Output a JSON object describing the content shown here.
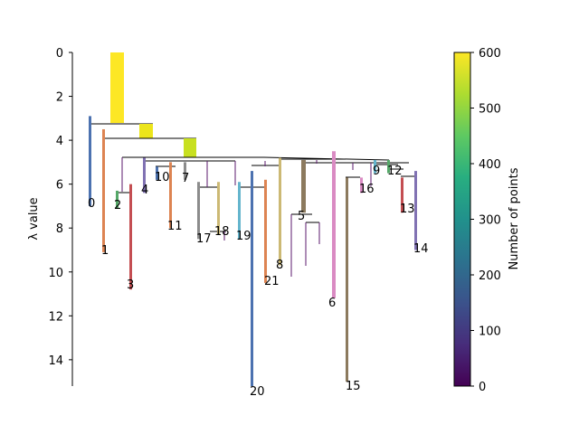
{
  "chart_data": {
    "type": "condensed tree",
    "ylabel": "λ value",
    "y_axis_inverted": true,
    "ylim": [
      0,
      15.2
    ],
    "yticks": [
      "0",
      "2",
      "4",
      "6",
      "8",
      "10",
      "12",
      "14"
    ],
    "colorbar": {
      "label": "Number of points",
      "range": [
        0,
        600
      ],
      "ticks": [
        "0",
        "100",
        "200",
        "300",
        "400",
        "500",
        "600"
      ],
      "colormap": "viridis"
    },
    "clusters": [
      {
        "label": "0",
        "lambda_birth": 2.9,
        "lambda_death": 7.0,
        "points": 160
      },
      {
        "label": "1",
        "lambda_birth": 3.5,
        "lambda_death": 9.1,
        "points": 90
      },
      {
        "label": "2",
        "lambda_birth": 6.3,
        "lambda_death": 7.1,
        "points": 30
      },
      {
        "label": "3",
        "lambda_birth": 6.0,
        "lambda_death": 10.8,
        "points": 60
      },
      {
        "label": "4",
        "lambda_birth": 4.8,
        "lambda_death": 6.4,
        "points": 40
      },
      {
        "label": "5",
        "lambda_birth": 4.9,
        "lambda_death": 7.3,
        "points": 110
      },
      {
        "label": "6",
        "lambda_birth": 4.5,
        "lambda_death": 11.2,
        "points": 40
      },
      {
        "label": "7",
        "lambda_birth": 5.0,
        "lambda_death": 5.8,
        "points": 30
      },
      {
        "label": "8",
        "lambda_birth": 4.8,
        "lambda_death": 9.7,
        "points": 20
      },
      {
        "label": "9",
        "lambda_birth": 4.9,
        "lambda_death": 5.5,
        "points": 30
      },
      {
        "label": "10",
        "lambda_birth": 5.2,
        "lambda_death": 5.8,
        "points": 30
      },
      {
        "label": "11",
        "lambda_birth": 5.0,
        "lambda_death": 8.0,
        "points": 50
      },
      {
        "label": "12",
        "lambda_birth": 4.9,
        "lambda_death": 5.5,
        "points": 30
      },
      {
        "label": "13",
        "lambda_birth": 5.7,
        "lambda_death": 7.3,
        "points": 40
      },
      {
        "label": "14",
        "lambda_birth": 5.4,
        "lambda_death": 9.0,
        "points": 30
      },
      {
        "label": "15",
        "lambda_birth": 5.7,
        "lambda_death": 15.0,
        "points": 40
      },
      {
        "label": "16",
        "lambda_birth": 5.7,
        "lambda_death": 6.4,
        "points": 30
      },
      {
        "label": "17",
        "lambda_birth": 5.9,
        "lambda_death": 8.5,
        "points": 40
      },
      {
        "label": "18",
        "lambda_birth": 5.9,
        "lambda_death": 8.3,
        "points": 30
      },
      {
        "label": "19",
        "lambda_birth": 5.9,
        "lambda_death": 8.5,
        "points": 30
      },
      {
        "label": "20",
        "lambda_birth": 5.4,
        "lambda_death": 15.2,
        "points": 60
      },
      {
        "label": "21",
        "lambda_birth": 5.8,
        "lambda_death": 10.5,
        "points": 30
      }
    ]
  }
}
